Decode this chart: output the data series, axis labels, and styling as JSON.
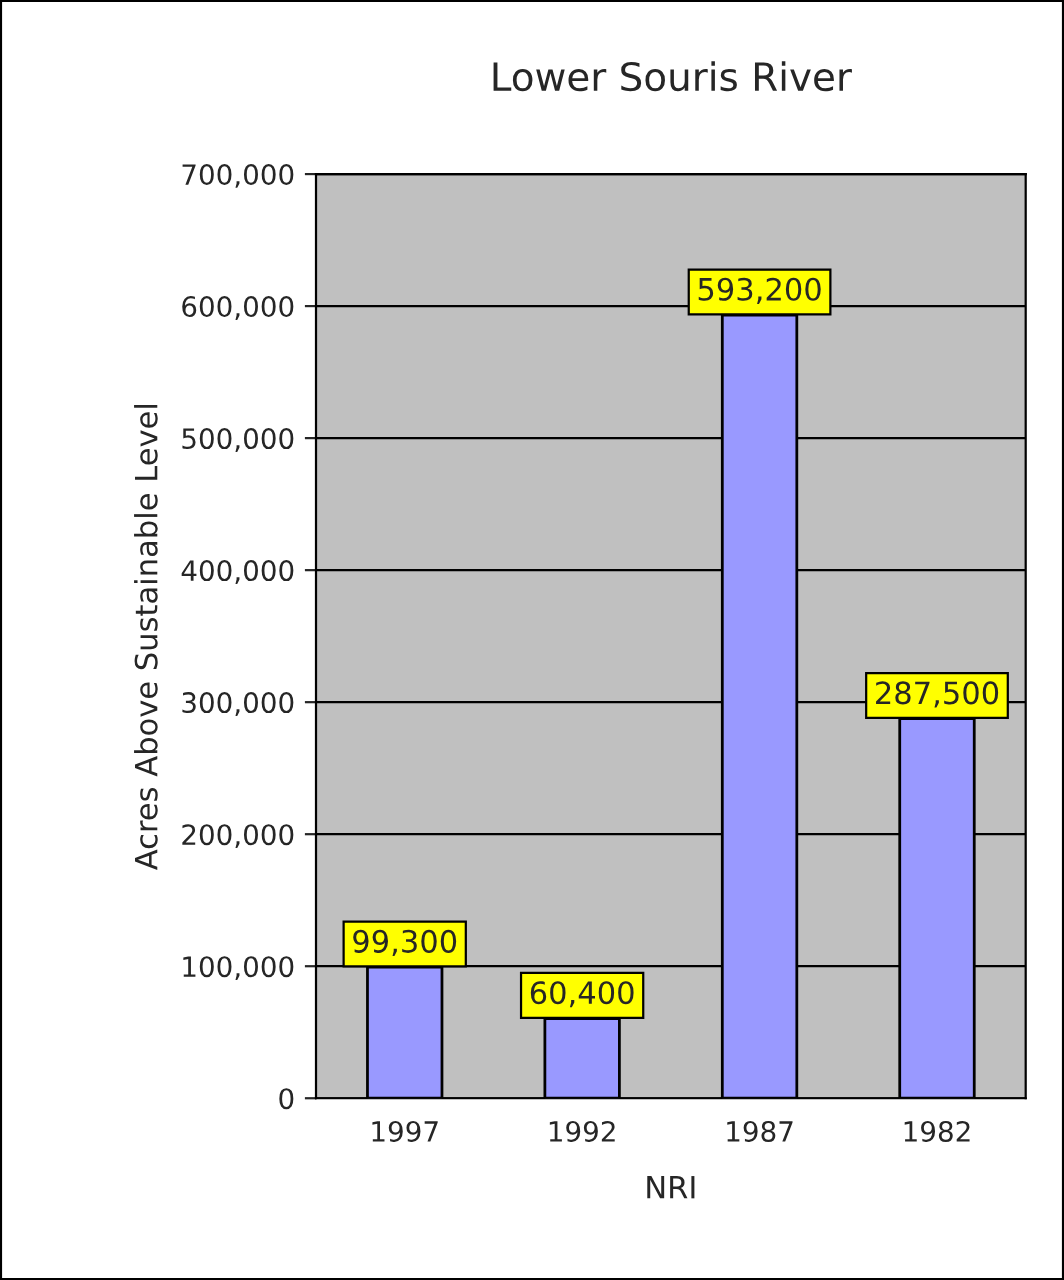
{
  "chart_data": {
    "type": "bar",
    "title": "Lower Souris River",
    "xlabel": "NRI",
    "ylabel": "Acres Above Sustainable Level",
    "categories": [
      "1997",
      "1992",
      "1987",
      "1982"
    ],
    "values": [
      99300,
      60400,
      593200,
      287500
    ],
    "value_labels": [
      "99,300",
      "60,400",
      "593,200",
      "287,500"
    ],
    "color": "#9999ff",
    "ylim": [
      0,
      700000
    ],
    "yticks": [
      0,
      {
        "value": 100000,
        "label": "100,000"
      },
      {
        "value": 200000,
        "label": "200,000"
      },
      {
        "value": 300000,
        "label": "300,000"
      },
      {
        "value": 400000,
        "label": "400,000"
      },
      {
        "value": 500000,
        "label": "500,000"
      },
      {
        "value": 600000,
        "label": "600,000"
      },
      {
        "value": 700000,
        "label": "700,000"
      }
    ],
    "grid": "y",
    "legend": false
  }
}
